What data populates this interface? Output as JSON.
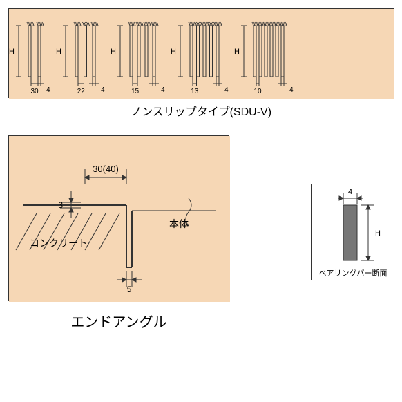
{
  "top_panel": {
    "bg": "#f6d7b5",
    "stroke": "#333333",
    "caption": "ノンスリップタイプ(SDU-V)",
    "h_label": "H",
    "thick_label": "4",
    "groups": [
      {
        "n": 1,
        "pitch": "30"
      },
      {
        "n": 2,
        "pitch": "22"
      },
      {
        "n": 3,
        "pitch": "15"
      },
      {
        "n": 4,
        "pitch": "13"
      },
      {
        "n": 5,
        "pitch": "10"
      }
    ]
  },
  "end_angle": {
    "bg": "#f6d7b5",
    "stroke": "#333333",
    "caption": "エンドアングル",
    "dim_top": "30(40)",
    "dim_side": "3",
    "dim_bottom": "5",
    "label_body": "本体",
    "label_concrete": "コンクリート"
  },
  "bearing": {
    "bg": "#ffffff",
    "stroke": "#333333",
    "bar_fill": "#777777",
    "dim_w": "4",
    "dim_h": "H",
    "caption": "ベアリングバー断面"
  }
}
